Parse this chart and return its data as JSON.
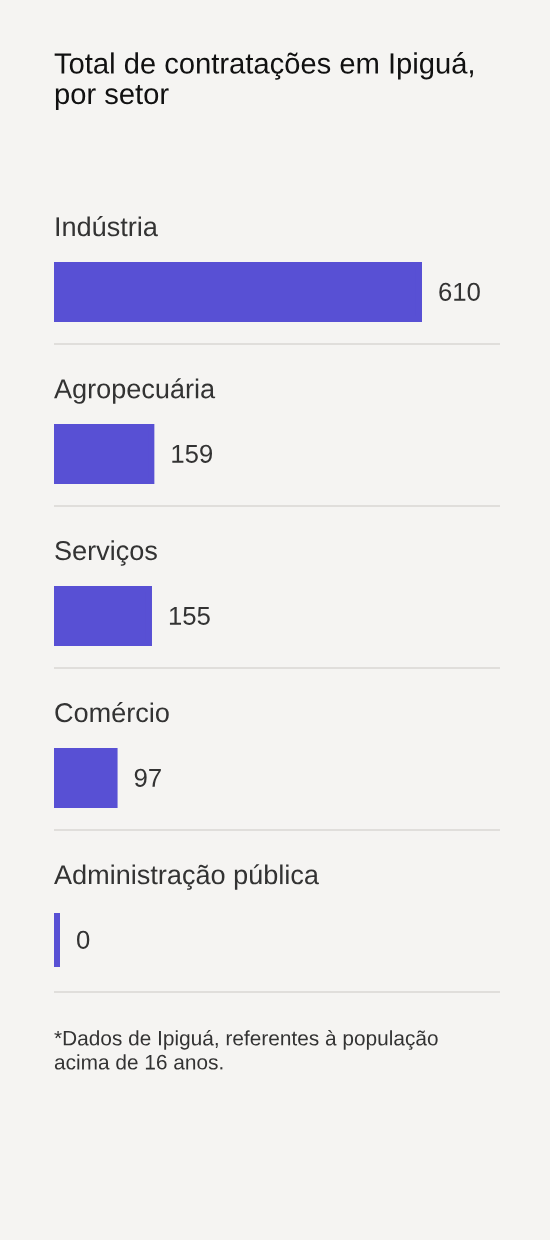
{
  "chart_data": {
    "type": "bar",
    "orientation": "horizontal",
    "title": "Total de contratações em Ipiguá, por setor",
    "categories": [
      "Indústria",
      "Agropecuária",
      "Serviços",
      "Comércio",
      "Administração pública"
    ],
    "values": [
      610,
      159,
      155,
      97,
      0
    ],
    "color": "#5850d4",
    "data_labels": true,
    "grid": "y",
    "annotations": [
      "*Dados de Ipiguá, referentes à população acima de 16 anos."
    ]
  }
}
